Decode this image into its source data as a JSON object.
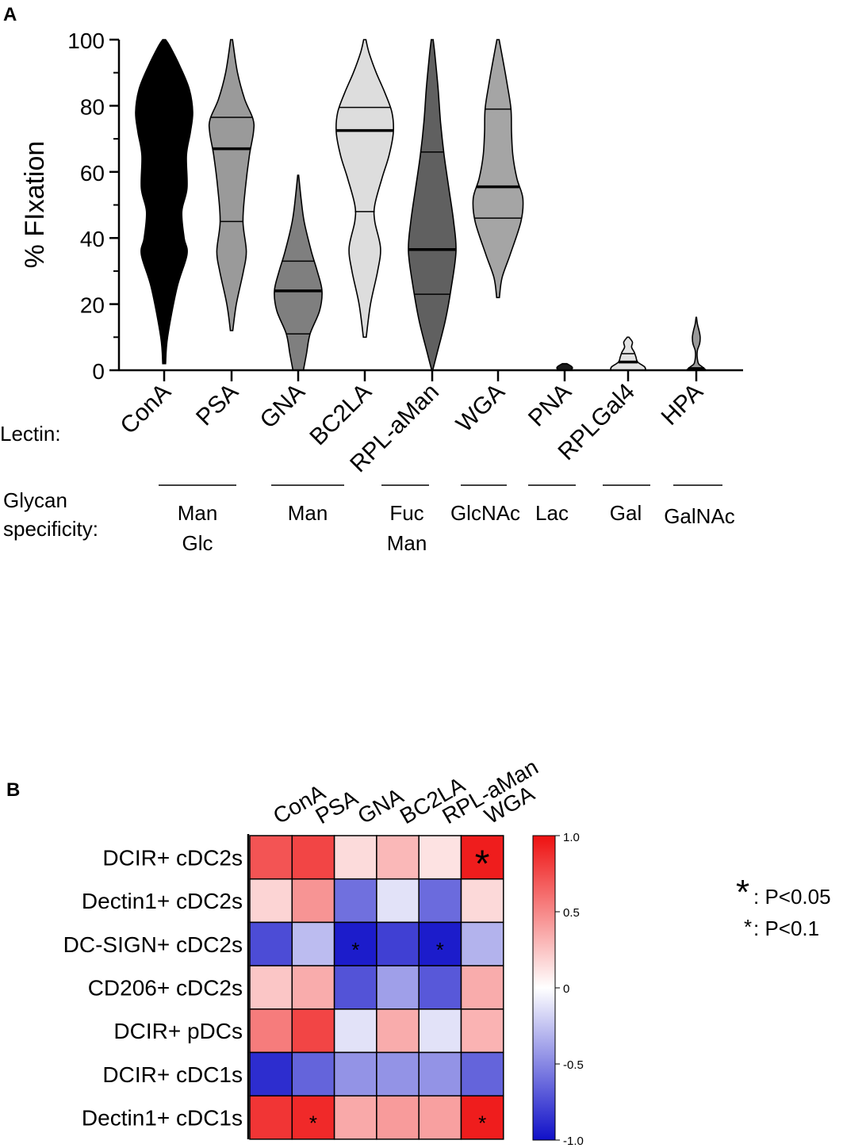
{
  "panel_a": {
    "panel_letter": "A",
    "lectin_row_label": "Lectin:",
    "glycan_row_label_1": "Glycan",
    "glycan_row_label_2": "specificity:",
    "specificity_groups": [
      {
        "lines": [
          "Man",
          "Glc"
        ],
        "lectins": [
          "ConA",
          "PSA"
        ]
      },
      {
        "lines": [
          "Man"
        ],
        "lectins": [
          "GNA"
        ]
      },
      {
        "lines": [
          "Fuc",
          "Man"
        ],
        "lectins": [
          "RPL-aMan"
        ]
      },
      {
        "lines": [
          "GlcNAc"
        ],
        "lectins": [
          "WGA"
        ]
      },
      {
        "lines": [
          "Lac"
        ],
        "lectins": [
          "PNA"
        ]
      },
      {
        "lines": [
          "Gal"
        ],
        "lectins": [
          "RPLGal4"
        ]
      },
      {
        "lines": [
          "GalNAc"
        ],
        "lectins": [
          "HPA"
        ]
      }
    ]
  },
  "panel_b": {
    "panel_letter": "B",
    "legend_big_star": "*",
    "legend_big_text": ": P<0.05",
    "legend_small_star": "*",
    "legend_small_text": ": P<0.1"
  },
  "chart_data": [
    {
      "type": "violin",
      "title": "",
      "ylabel": "% FIxation",
      "xlabel": "Lectin",
      "ylim": [
        0,
        100
      ],
      "yticks": [
        0,
        20,
        40,
        60,
        80,
        100
      ],
      "categories": [
        "ConA",
        "PSA",
        "GNA",
        "BC2LA",
        "RPL-aMan",
        "WGA",
        "PNA",
        "RPLGal4",
        "HPA"
      ],
      "fill_colors": [
        "#000000",
        "#9a9a9a",
        "#7f7f7f",
        "#dddddd",
        "#606060",
        "#a5a5a5",
        "#1a1a1a",
        "#e3e3e3",
        "#999999"
      ],
      "series": [
        {
          "name": "ConA",
          "min": 2,
          "max": 100,
          "median": null,
          "q1": null,
          "q3": null,
          "profile": [
            [
              2,
              0.05
            ],
            [
              10,
              0.12
            ],
            [
              25,
              0.45
            ],
            [
              35,
              0.8
            ],
            [
              40,
              0.7
            ],
            [
              48,
              0.62
            ],
            [
              55,
              0.8
            ],
            [
              65,
              0.78
            ],
            [
              72,
              0.92
            ],
            [
              78,
              1.0
            ],
            [
              85,
              0.88
            ],
            [
              92,
              0.55
            ],
            [
              98,
              0.2
            ],
            [
              100,
              0.05
            ]
          ]
        },
        {
          "name": "PSA",
          "min": 12,
          "max": 100,
          "median": 67,
          "q1": 45,
          "q3": 76.5,
          "profile": [
            [
              12,
              0.05
            ],
            [
              20,
              0.2
            ],
            [
              30,
              0.5
            ],
            [
              36,
              0.62
            ],
            [
              45,
              0.48
            ],
            [
              55,
              0.58
            ],
            [
              65,
              0.75
            ],
            [
              72,
              0.92
            ],
            [
              76,
              0.9
            ],
            [
              82,
              0.55
            ],
            [
              90,
              0.25
            ],
            [
              100,
              0.04
            ]
          ]
        },
        {
          "name": "GNA",
          "min": 0,
          "max": 59,
          "median": 24,
          "q1": 11,
          "q3": 33,
          "profile": [
            [
              0,
              0.22
            ],
            [
              5,
              0.35
            ],
            [
              11,
              0.5
            ],
            [
              18,
              0.9
            ],
            [
              24,
              1.0
            ],
            [
              30,
              0.8
            ],
            [
              36,
              0.55
            ],
            [
              45,
              0.25
            ],
            [
              52,
              0.12
            ],
            [
              59,
              0.02
            ]
          ]
        },
        {
          "name": "BC2LA",
          "min": 10,
          "max": 100,
          "median": 72.5,
          "q1": 48,
          "q3": 79.5,
          "profile": [
            [
              10,
              0.05
            ],
            [
              20,
              0.2
            ],
            [
              30,
              0.45
            ],
            [
              37,
              0.55
            ],
            [
              45,
              0.35
            ],
            [
              50,
              0.35
            ],
            [
              58,
              0.6
            ],
            [
              65,
              0.85
            ],
            [
              72,
              1.0
            ],
            [
              78,
              0.95
            ],
            [
              84,
              0.7
            ],
            [
              90,
              0.4
            ],
            [
              96,
              0.15
            ],
            [
              100,
              0.04
            ]
          ]
        },
        {
          "name": "RPL-aMan",
          "min": 0,
          "max": 100,
          "median": 36.5,
          "q1": 23,
          "q3": 66,
          "profile": [
            [
              0,
              0.02
            ],
            [
              5,
              0.2
            ],
            [
              15,
              0.55
            ],
            [
              25,
              0.8
            ],
            [
              36,
              1.0
            ],
            [
              45,
              0.9
            ],
            [
              55,
              0.7
            ],
            [
              65,
              0.5
            ],
            [
              75,
              0.35
            ],
            [
              85,
              0.25
            ],
            [
              95,
              0.12
            ],
            [
              100,
              0.04
            ]
          ]
        },
        {
          "name": "WGA",
          "min": 22,
          "max": 100,
          "median": 55.5,
          "q1": 46,
          "q3": 79,
          "profile": [
            [
              22,
              0.05
            ],
            [
              28,
              0.15
            ],
            [
              35,
              0.45
            ],
            [
              45,
              0.85
            ],
            [
              52,
              0.92
            ],
            [
              58,
              0.7
            ],
            [
              65,
              0.55
            ],
            [
              72,
              0.5
            ],
            [
              79,
              0.48
            ],
            [
              86,
              0.35
            ],
            [
              93,
              0.2
            ],
            [
              100,
              0.04
            ]
          ]
        },
        {
          "name": "PNA",
          "min": 0,
          "max": 2,
          "median": null,
          "q1": null,
          "q3": null,
          "profile": [
            [
              0,
              0.5
            ],
            [
              0.6,
              0.7
            ],
            [
              1.2,
              0.6
            ],
            [
              2,
              0.2
            ]
          ]
        },
        {
          "name": "RPLGal4",
          "min": 0,
          "max": 10,
          "median": 2.5,
          "q1": null,
          "q3": 5,
          "profile": [
            [
              0,
              1.0
            ],
            [
              1,
              0.95
            ],
            [
              2.5,
              0.55
            ],
            [
              4,
              0.45
            ],
            [
              5.5,
              0.35
            ],
            [
              7,
              0.2
            ],
            [
              8.5,
              0.25
            ],
            [
              10,
              0.05
            ]
          ]
        },
        {
          "name": "HPA",
          "min": 0,
          "max": 16,
          "median": 0.5,
          "q1": null,
          "q3": null,
          "profile": [
            [
              0,
              0.9
            ],
            [
              1,
              0.55
            ],
            [
              2,
              0.2
            ],
            [
              4,
              0.08
            ],
            [
              6,
              0.1
            ],
            [
              8,
              0.3
            ],
            [
              10,
              0.35
            ],
            [
              12,
              0.25
            ],
            [
              14,
              0.1
            ],
            [
              16,
              0.02
            ]
          ]
        }
      ]
    },
    {
      "type": "heatmap",
      "title": "",
      "columns": [
        "ConA",
        "PSA",
        "GNA",
        "BC2LA",
        "RPL-aMan",
        "WGA"
      ],
      "rows": [
        "DCIR+ cDC2s",
        "Dectin1+ cDC2s",
        "DC-SIGN+ cDC2s",
        "CD206+ cDC2s",
        "DCIR+ pDCs",
        "DCIR+ cDC1s",
        "Dectin1+ cDC1s"
      ],
      "values": [
        [
          0.72,
          0.78,
          0.15,
          0.3,
          0.12,
          0.95
        ],
        [
          0.18,
          0.45,
          -0.6,
          -0.12,
          -0.62,
          0.16
        ],
        [
          -0.75,
          -0.28,
          -0.95,
          -0.8,
          -0.95,
          -0.32
        ],
        [
          0.24,
          0.35,
          -0.72,
          -0.4,
          -0.7,
          0.35
        ],
        [
          0.55,
          0.78,
          -0.12,
          0.35,
          -0.12,
          0.32
        ],
        [
          -0.88,
          -0.65,
          -0.45,
          -0.45,
          -0.45,
          -0.65
        ],
        [
          0.85,
          0.9,
          0.36,
          0.42,
          0.4,
          0.95
        ]
      ],
      "significance": [
        [
          "",
          "",
          "",
          "",
          "",
          "p<0.05"
        ],
        [
          "",
          "",
          "",
          "",
          "",
          ""
        ],
        [
          "",
          "",
          "p<0.1",
          "",
          "p<0.1",
          ""
        ],
        [
          "",
          "",
          "",
          "",
          "",
          ""
        ],
        [
          "",
          "",
          "",
          "",
          "",
          ""
        ],
        [
          "",
          "",
          "",
          "",
          "",
          ""
        ],
        [
          "",
          "p<0.1",
          "",
          "",
          "",
          "p<0.1"
        ]
      ],
      "colorbar": {
        "range": [
          -1.0,
          1.0
        ],
        "ticks": [
          -1.0,
          -0.5,
          0,
          0.5,
          1.0
        ],
        "tick_labels": [
          "-1.0",
          "-0.5",
          "0",
          "0.5",
          "1.0"
        ],
        "colors": {
          "low": "#1010c8",
          "mid": "#ffffff",
          "high": "#ee1111"
        }
      }
    }
  ]
}
